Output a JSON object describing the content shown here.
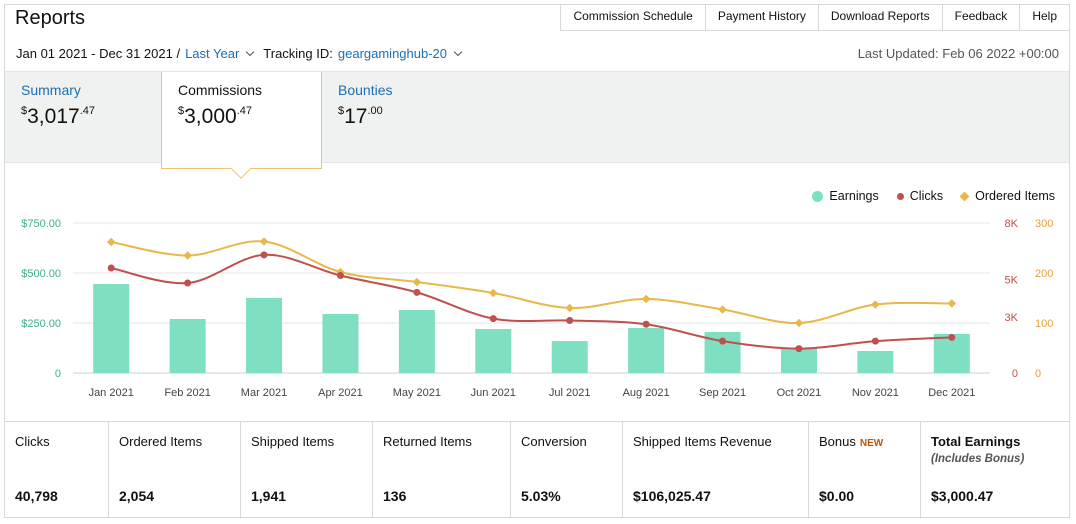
{
  "header": {
    "title": "Reports",
    "nav": [
      "Commission Schedule",
      "Payment History",
      "Download Reports",
      "Feedback",
      "Help"
    ]
  },
  "filters": {
    "date_range": "Jan 01 2021 - Dec 31 2021 /",
    "period": "Last Year",
    "tracking_label": "Tracking ID:",
    "tracking_id": "geargaminghub-20",
    "last_updated": "Last Updated: Feb 06 2022 +00:00"
  },
  "summary_tabs": [
    {
      "label": "Summary",
      "dollar": "$",
      "whole": "3,017",
      "cents": ".47",
      "active": false
    },
    {
      "label": "Commissions",
      "dollar": "$",
      "whole": "3,000",
      "cents": ".47",
      "active": true
    },
    {
      "label": "Bounties",
      "dollar": "$",
      "whole": "17",
      "cents": ".00",
      "active": false
    }
  ],
  "chart_data": {
    "type": "bar",
    "categories": [
      "Jan 2021",
      "Feb 2021",
      "Mar 2021",
      "Apr 2021",
      "May 2021",
      "Jun 2021",
      "Jul 2021",
      "Aug 2021",
      "Sep 2021",
      "Oct 2021",
      "Nov 2021",
      "Dec 2021"
    ],
    "series": [
      {
        "name": "Earnings",
        "type": "bar",
        "axis": "left",
        "color": "#7edfc3",
        "values": [
          445,
          270,
          375,
          295,
          315,
          220,
          160,
          225,
          205,
          125,
          110,
          195
        ]
      },
      {
        "name": "Clicks",
        "type": "line",
        "axis": "right1",
        "color": "#c0504d",
        "values": [
          5600,
          4800,
          6300,
          5200,
          4300,
          2900,
          2800,
          2600,
          1700,
          1300,
          1700,
          1900
        ]
      },
      {
        "name": "Ordered Items",
        "type": "line",
        "axis": "right2",
        "color": "#e8b84a",
        "values": [
          262,
          235,
          263,
          202,
          182,
          160,
          130,
          148,
          127,
          100,
          137,
          139
        ]
      }
    ],
    "left_axis": {
      "ticks": [
        "0",
        "$250.00",
        "$500.00",
        "$750.00"
      ],
      "ylim": [
        0,
        750
      ],
      "color": "#3fae8f"
    },
    "right_axis_1": {
      "ticks": [
        "0",
        "3K",
        "5K",
        "8K"
      ],
      "ylim": [
        0,
        8000
      ],
      "color": "#c0504d"
    },
    "right_axis_2": {
      "ticks": [
        "0",
        "100",
        "200",
        "300"
      ],
      "ylim": [
        0,
        300
      ],
      "color": "#e8a13a"
    },
    "grid": true,
    "legend": "top-right"
  },
  "stats": [
    {
      "name": "Clicks",
      "value": "40,798"
    },
    {
      "name": "Ordered Items",
      "value": "2,054"
    },
    {
      "name": "Shipped Items",
      "value": "1,941"
    },
    {
      "name": "Returned Items",
      "value": "136"
    },
    {
      "name": "Conversion",
      "value": "5.03%"
    },
    {
      "name": "Shipped Items Revenue",
      "value": "$106,025.47"
    },
    {
      "name": "Bonus",
      "badge": "NEW",
      "value": "$0.00"
    },
    {
      "name": "Total Earnings",
      "sub": "(Includes Bonus)",
      "value": "$3,000.47"
    }
  ]
}
